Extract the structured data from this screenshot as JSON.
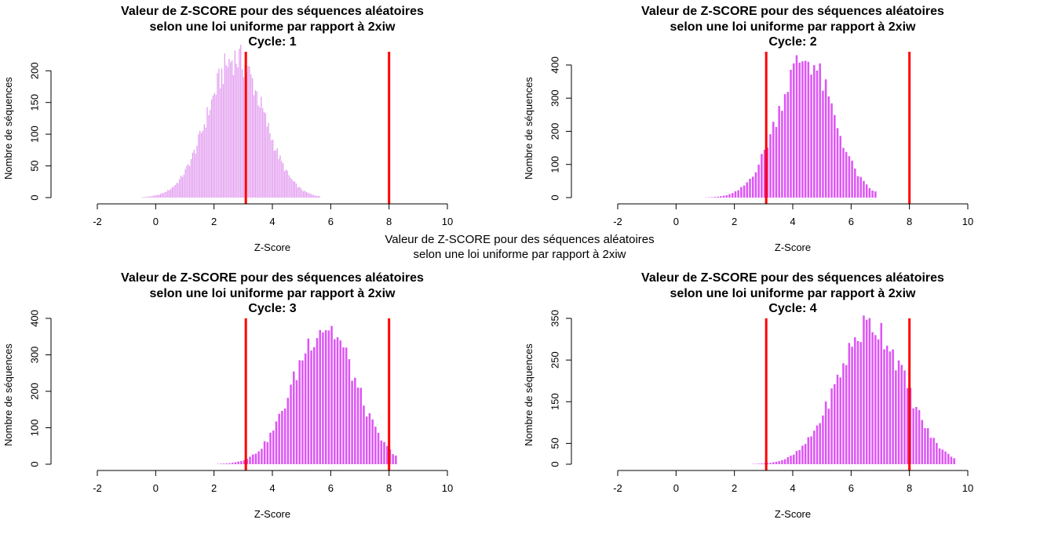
{
  "outer_title": {
    "line1": "Valeur de Z-SCORE pour des séquences aléatoires",
    "line2": "selon une loi uniforme par rapport à 2xiw"
  },
  "colors": {
    "bars": "#dd55f5",
    "bars_light": "#e29bf0",
    "vlines": "#ff0000",
    "axis": "#000000"
  },
  "chart_data": [
    {
      "type": "bar",
      "title": [
        "Valeur de Z-SCORE pour des séquences aléatoires",
        "selon une loi uniforme par rapport à 2xiw",
        "Cycle: 1"
      ],
      "xlabel": "Z-Score",
      "ylabel": "Nombre de séquences",
      "xlim": [
        -2,
        10
      ],
      "ylim": [
        0,
        230
      ],
      "x_ticks": [
        -2,
        0,
        2,
        4,
        6,
        8,
        10
      ],
      "y_ticks": [
        0,
        50,
        100,
        150,
        200
      ],
      "vlines": [
        3.09,
        8.0
      ],
      "bin_width": 0.05,
      "mean": 2.75,
      "sd": 0.95,
      "peak": 220,
      "x_range": [
        -1.0,
        5.6
      ]
    },
    {
      "type": "bar",
      "title": [
        "Valeur de Z-SCORE pour des séquences aléatoires",
        "selon une loi uniforme par rapport à 2xiw",
        "Cycle: 2"
      ],
      "xlabel": "Z-Score",
      "ylabel": "Nombre de séquences",
      "xlim": [
        -2,
        10
      ],
      "ylim": [
        0,
        440
      ],
      "x_ticks": [
        -2,
        0,
        2,
        4,
        6,
        8,
        10
      ],
      "y_ticks": [
        0,
        100,
        200,
        300,
        400
      ],
      "vlines": [
        3.09,
        8.0
      ],
      "bin_width": 0.1,
      "mean": 4.45,
      "sd": 0.95,
      "peak": 420,
      "x_range": [
        0.4,
        6.8
      ]
    },
    {
      "type": "bar",
      "title": [
        "Valeur de Z-SCORE pour des séquences aléatoires",
        "selon une loi uniforme par rapport à 2xiw",
        "Cycle: 3"
      ],
      "xlabel": "Z-Score",
      "ylabel": "Nombre de séquences",
      "xlim": [
        -2,
        10
      ],
      "ylim": [
        0,
        400
      ],
      "x_ticks": [
        -2,
        0,
        2,
        4,
        6,
        8,
        10
      ],
      "y_ticks": [
        0,
        100,
        200,
        300,
        400
      ],
      "vlines": [
        3.09,
        8.0
      ],
      "bin_width": 0.1,
      "mean": 5.8,
      "sd": 1.05,
      "peak": 380,
      "x_range": [
        1.1,
        8.2
      ]
    },
    {
      "type": "bar",
      "title": [
        "Valeur de Z-SCORE pour des séquences aléatoires",
        "selon une loi uniforme par rapport à 2xiw",
        "Cycle: 4"
      ],
      "xlabel": "Z-Score",
      "ylabel": "Nombre de séquences",
      "xlim": [
        -2,
        10
      ],
      "ylim": [
        0,
        350
      ],
      "x_ticks": [
        -2,
        0,
        2,
        4,
        6,
        8,
        10
      ],
      "y_ticks": [
        0,
        50,
        150,
        250,
        350
      ],
      "vlines": [
        3.09,
        8.0
      ],
      "bin_width": 0.1,
      "mean": 6.7,
      "sd": 1.15,
      "peak": 335,
      "x_range": [
        1.9,
        9.5
      ]
    }
  ]
}
